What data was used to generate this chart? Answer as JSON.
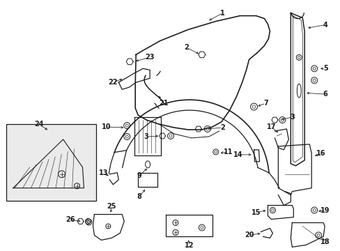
{
  "bg_color": "#ffffff",
  "line_color": "#1a1a1a",
  "label_fontsize": 7.0,
  "lw": 0.9
}
